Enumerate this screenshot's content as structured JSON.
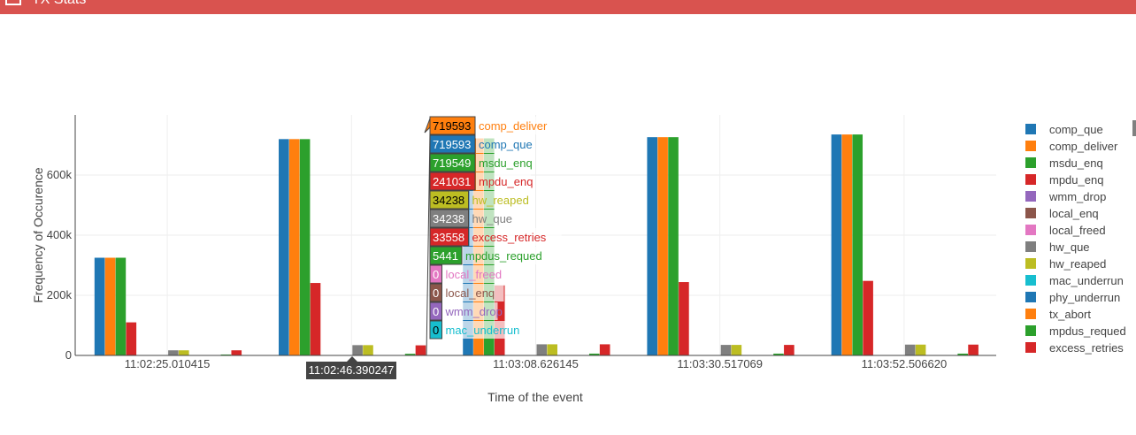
{
  "window": {
    "title": "TX Stats"
  },
  "modebar": {
    "icons": [
      "camera-icon",
      "save-icon",
      "zoom-icon",
      "pan-icon",
      "zoom-in-icon",
      "zoom-out-icon",
      "autoscale-icon",
      "home-icon",
      "spike-lines-icon",
      "hover-closest-icon",
      "hover-compare-icon",
      "plotly-logo-icon"
    ]
  },
  "chart_data": {
    "type": "bar",
    "xlabel": "Time of the event",
    "ylabel": "Frequency of Occurence",
    "ylim": [
      0,
      800000
    ],
    "yticks": [
      0,
      200000,
      400000,
      600000
    ],
    "ytick_labels": [
      "0",
      "200k",
      "400k",
      "600k"
    ],
    "grid": true,
    "legend_position": "right",
    "categories": [
      "11:02:25.010415",
      "11:02:46.390247",
      "11:03:08.626145",
      "11:03:30.517069",
      "11:03:52.506620"
    ],
    "xtick_labels": [
      "11:02:25.010415",
      "11:03:08.626145",
      "11:03:30.517069",
      "11:03:52.506620"
    ],
    "series": [
      {
        "name": "comp_que",
        "color": "#1f77b4",
        "values": [
          325000,
          719593,
          722000,
          726000,
          735000
        ]
      },
      {
        "name": "comp_deliver",
        "color": "#ff7f0e",
        "values": [
          325000,
          719593,
          722000,
          726000,
          735000
        ]
      },
      {
        "name": "msdu_enq",
        "color": "#2ca02c",
        "values": [
          325000,
          719549,
          722000,
          726000,
          735000
        ]
      },
      {
        "name": "mpdu_enq",
        "color": "#d62728",
        "values": [
          110000,
          241031,
          233000,
          244000,
          248000
        ]
      },
      {
        "name": "wmm_drop",
        "color": "#9467bd",
        "values": [
          0,
          0,
          0,
          0,
          0
        ]
      },
      {
        "name": "local_enq",
        "color": "#8c564b",
        "values": [
          0,
          0,
          0,
          0,
          0
        ]
      },
      {
        "name": "local_freed",
        "color": "#e377c2",
        "values": [
          0,
          0,
          0,
          0,
          0
        ]
      },
      {
        "name": "hw_que",
        "color": "#7f7f7f",
        "values": [
          17000,
          34238,
          37000,
          35000,
          36000
        ]
      },
      {
        "name": "hw_reaped",
        "color": "#bcbd22",
        "values": [
          17000,
          34238,
          37000,
          35000,
          36000
        ]
      },
      {
        "name": "mac_underrun",
        "color": "#17becf",
        "values": [
          0,
          0,
          0,
          0,
          0
        ]
      },
      {
        "name": "phy_underrun",
        "color": "#1f77b4",
        "values": [
          0,
          0,
          0,
          0,
          0
        ]
      },
      {
        "name": "tx_abort",
        "color": "#ff7f0e",
        "values": [
          0,
          0,
          0,
          0,
          0
        ]
      },
      {
        "name": "mpdus_requed",
        "color": "#2ca02c",
        "values": [
          3000,
          5441,
          6000,
          6000,
          6000
        ]
      },
      {
        "name": "excess_retries",
        "color": "#d62728",
        "values": [
          17000,
          33558,
          37000,
          35000,
          36000
        ]
      }
    ],
    "hover": {
      "x_label": "11:02:46.390247",
      "items": [
        {
          "value": "719593",
          "name": "comp_deliver",
          "color": "#ff7f0e",
          "text_color": "#000000"
        },
        {
          "value": "719593",
          "name": "comp_que",
          "color": "#1f77b4",
          "text_color": "#ffffff"
        },
        {
          "value": "719549",
          "name": "msdu_enq",
          "color": "#2ca02c",
          "text_color": "#ffffff"
        },
        {
          "value": "241031",
          "name": "mpdu_enq",
          "color": "#d62728",
          "text_color": "#ffffff"
        },
        {
          "value": "34238",
          "name": "hw_reaped",
          "color": "#bcbd22",
          "text_color": "#000000"
        },
        {
          "value": "34238",
          "name": "hw_que",
          "color": "#7f7f7f",
          "text_color": "#ffffff"
        },
        {
          "value": "33558",
          "name": "excess_retries",
          "color": "#d62728",
          "text_color": "#ffffff"
        },
        {
          "value": "5441",
          "name": "mpdus_requed",
          "color": "#2ca02c",
          "text_color": "#ffffff"
        },
        {
          "value": "0",
          "name": "local_freed",
          "color": "#e377c2",
          "text_color": "#ffffff"
        },
        {
          "value": "0",
          "name": "local_enq",
          "color": "#8c564b",
          "text_color": "#ffffff"
        },
        {
          "value": "0",
          "name": "wmm_drop",
          "color": "#9467bd",
          "text_color": "#ffffff"
        },
        {
          "value": "0",
          "name": "mac_underrun",
          "color": "#17becf",
          "text_color": "#000000"
        }
      ]
    }
  }
}
